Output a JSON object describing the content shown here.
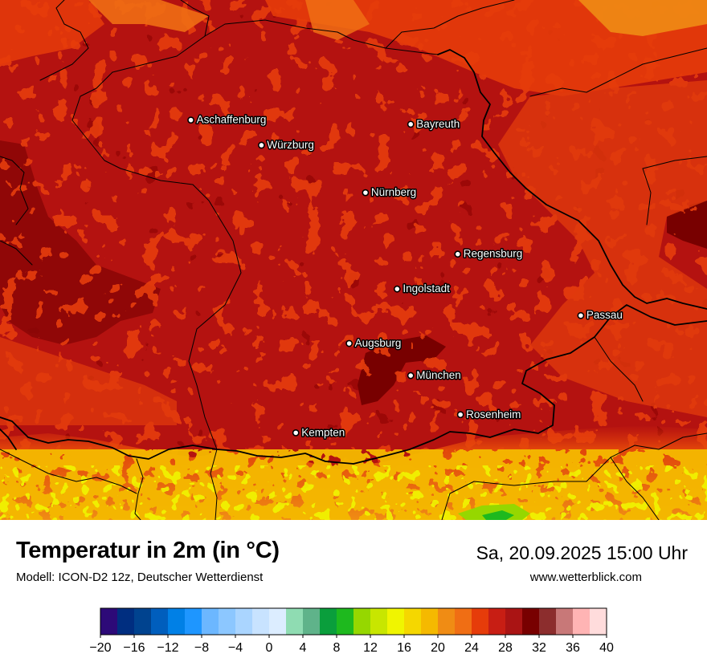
{
  "title": "Temperatur in 2m (in °C)",
  "model": "Modell: ICON-D2 12z, Deutscher Wetterdienst",
  "datetime": "Sa, 20.09.2025 15:00 Uhr",
  "website": "www.wetterblick.com",
  "cities": [
    {
      "name": "Aschaffenburg",
      "lon": 9.15,
      "lat": 49.97
    },
    {
      "name": "Würzburg",
      "lon": 9.93,
      "lat": 49.79
    },
    {
      "name": "Bayreuth",
      "lon": 11.58,
      "lat": 49.94
    },
    {
      "name": "Nürnberg",
      "lon": 11.08,
      "lat": 49.45
    },
    {
      "name": "Regensburg",
      "lon": 12.1,
      "lat": 49.01
    },
    {
      "name": "Ingolstadt",
      "lon": 11.43,
      "lat": 48.76
    },
    {
      "name": "Passau",
      "lon": 13.46,
      "lat": 48.57
    },
    {
      "name": "Augsburg",
      "lon": 10.9,
      "lat": 48.37
    },
    {
      "name": "München",
      "lon": 11.58,
      "lat": 48.14
    },
    {
      "name": "Rosenheim",
      "lon": 12.13,
      "lat": 47.86
    },
    {
      "name": "Kempten",
      "lon": 10.31,
      "lat": 47.73
    }
  ],
  "colorbar": {
    "ticks": [
      "−20",
      "−16",
      "−12",
      "−8",
      "−4",
      "0",
      "4",
      "8",
      "12",
      "16",
      "20",
      "24",
      "28",
      "32",
      "36",
      "40"
    ],
    "colors": [
      "#2d0a78",
      "#002e80",
      "#00438f",
      "#005ebd",
      "#0080e6",
      "#1e96ff",
      "#6cb7ff",
      "#8cc7ff",
      "#aad5ff",
      "#c8e3ff",
      "#dcedff",
      "#8fdcb2",
      "#5fb38a",
      "#0a9e3c",
      "#1eb91e",
      "#96d700",
      "#c8e600",
      "#f0f500",
      "#f5d700",
      "#f5b900",
      "#f08c14",
      "#f06e14",
      "#e63c0a",
      "#c81e14",
      "#aa1414",
      "#780000",
      "#8c2d2d",
      "#c87878",
      "#ffb4b4",
      "#ffdcdc"
    ]
  }
}
